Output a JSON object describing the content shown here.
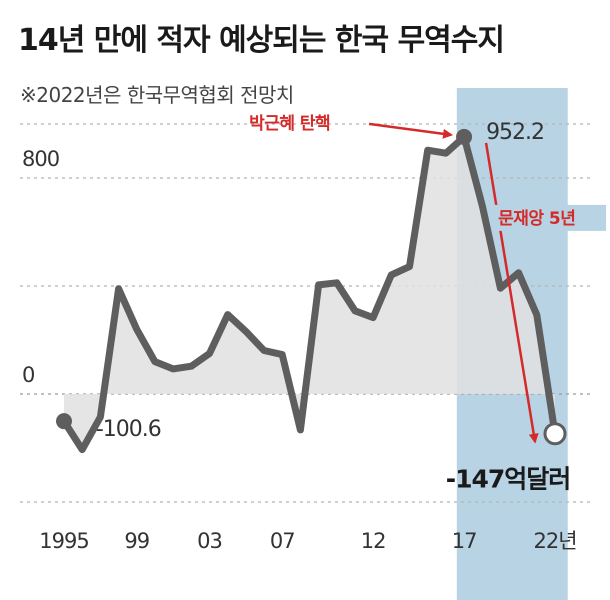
{
  "title": "14년 만에 적자 예상되는 한국 무역수지",
  "subtitle": "※2022년은 한국무역협회 전망치",
  "colors": {
    "line": "#5e5e5e",
    "area": "#e0e0e0",
    "highlight": "#b8d3e4",
    "accent": "#d42a2a"
  },
  "chart_data": {
    "type": "line",
    "x": [
      1995,
      1996,
      1997,
      1998,
      1999,
      2000,
      2001,
      2002,
      2003,
      2004,
      2005,
      2006,
      2007,
      2008,
      2009,
      2010,
      2011,
      2012,
      2013,
      2014,
      2015,
      2016,
      2017,
      2018,
      2019,
      2020,
      2021,
      2022
    ],
    "values": [
      -100.6,
      -206,
      -85,
      390,
      240,
      120,
      93,
      103,
      150,
      294,
      232,
      161,
      146,
      -133,
      404,
      412,
      308,
      283,
      441,
      472,
      903,
      892,
      952.2,
      697,
      392,
      449,
      293,
      -147
    ],
    "xticks": [
      1995,
      1999,
      2003,
      2007,
      2012,
      2017,
      2022
    ],
    "xtick_labels": [
      "1995",
      "99",
      "03",
      "07",
      "12",
      "17",
      "22년"
    ],
    "yticks": [
      0,
      800
    ],
    "ytick_labels": [
      "0",
      "800"
    ],
    "ylim": [
      -400,
      1000
    ],
    "grid": true,
    "highlight_range": [
      2016.6,
      2022.7
    ],
    "annotations": {
      "start_label": "-100.6",
      "peak_label": "952.2",
      "end_label": "-147억달러",
      "impeachment": "박근혜 탄핵",
      "moon": "문재앙 5년"
    }
  }
}
